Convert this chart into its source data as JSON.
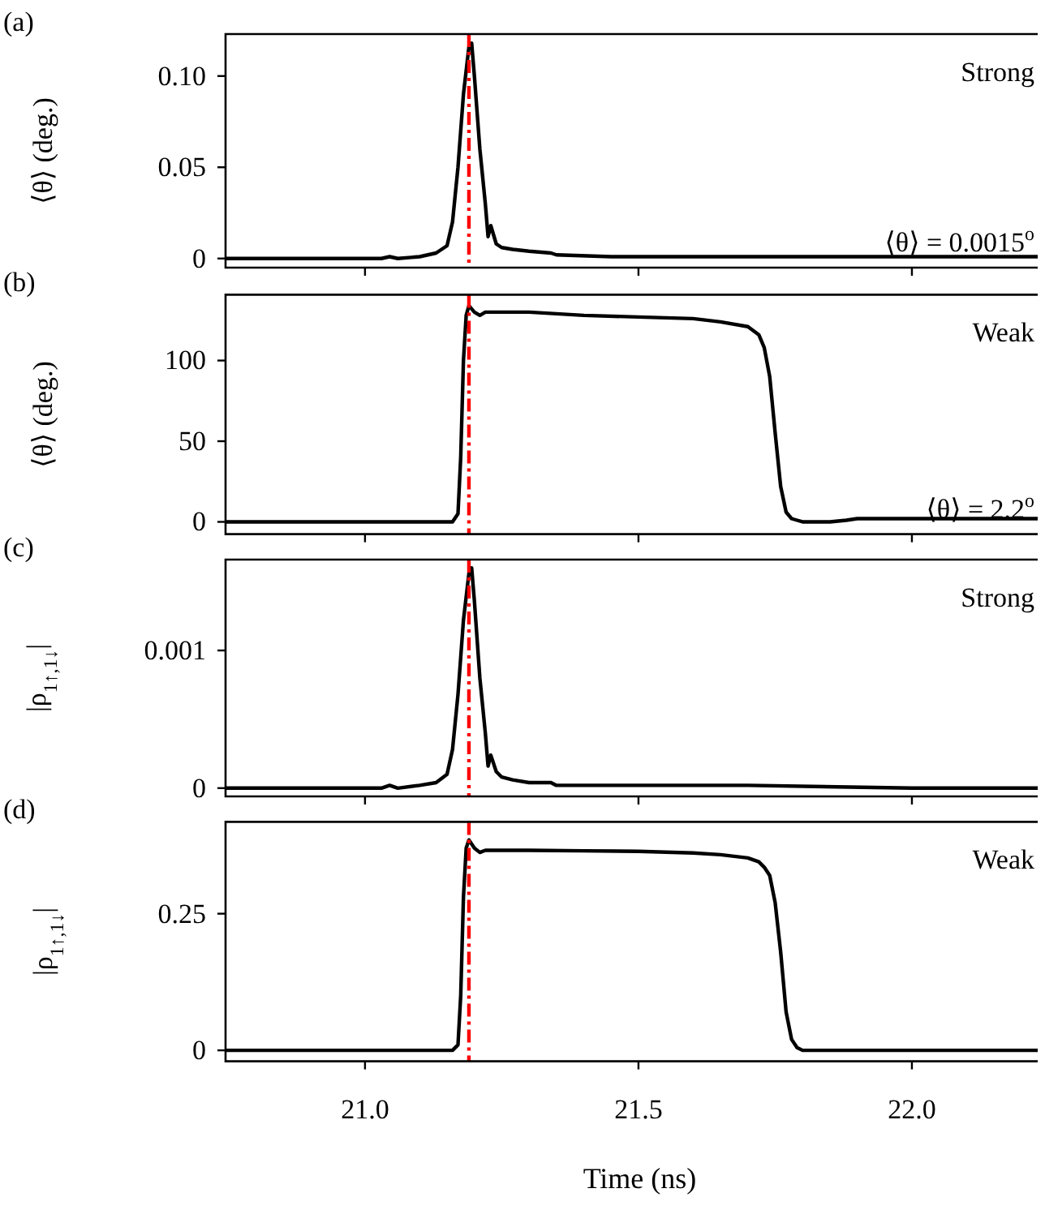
{
  "chart_data": [
    {
      "type": "line",
      "ylabel": "⟨θ⟩ (deg.)",
      "annotations": [
        "(a)",
        "Strong",
        "⟨θ⟩ = 0.0015$^{o}$"
      ],
      "tick_labels": "y",
      "xlim": [
        20.745,
        22.23
      ],
      "xticks": [
        {
          "value": 21,
          "label": null
        },
        {
          "value": 21.5,
          "label": null
        },
        {
          "value": 22,
          "label": null
        }
      ],
      "ylim": [
        -0.005,
        0.123
      ],
      "yticks": [
        0,
        0.05,
        {
          "value": 0.1,
          "label": "0.10"
        }
      ],
      "ref_lines": [
        {
          "axis": "x",
          "value": 21.19,
          "color": "#ff0000",
          "line_style": "dashdot"
        }
      ],
      "series": [
        {
          "color": "#000000",
          "x": [
            20.745,
            20.9,
            21.03,
            21.045,
            21.06,
            21.1,
            21.13,
            21.15,
            21.16,
            21.17,
            21.18,
            21.19,
            21.195,
            21.2,
            21.21,
            21.22,
            21.225,
            21.23,
            21.24,
            21.25,
            21.27,
            21.3,
            21.34,
            21.35,
            21.45,
            21.7,
            22.0,
            22.23
          ],
          "values": [
            0,
            0,
            0,
            0.001,
            0,
            0.001,
            0.003,
            0.007,
            0.02,
            0.05,
            0.09,
            0.116,
            0.118,
            0.1,
            0.06,
            0.03,
            0.012,
            0.018,
            0.008,
            0.006,
            0.005,
            0.004,
            0.003,
            0.002,
            0.001,
            0.001,
            0.001,
            0.001
          ]
        }
      ]
    },
    {
      "type": "line",
      "ylabel": "⟨θ⟩ (deg.)",
      "annotations": [
        "(b)",
        "Weak",
        "⟨θ⟩ = 2.2$^{o}$"
      ],
      "tick_labels": "y",
      "xlim": [
        20.745,
        22.23
      ],
      "xticks": [
        {
          "value": 21,
          "label": null
        },
        {
          "value": 21.5,
          "label": null
        },
        {
          "value": 22,
          "label": null
        }
      ],
      "ylim": [
        -7.6,
        140.8
      ],
      "yticks": [
        0,
        50,
        100
      ],
      "ref_lines": [
        {
          "axis": "x",
          "value": 21.19,
          "color": "#ff0000",
          "line_style": "dashdot"
        }
      ],
      "series": [
        {
          "color": "#000000",
          "x": [
            20.745,
            21.0,
            21.16,
            21.17,
            21.175,
            21.18,
            21.185,
            21.19,
            21.2,
            21.21,
            21.22,
            21.3,
            21.4,
            21.5,
            21.6,
            21.65,
            21.7,
            21.72,
            21.73,
            21.74,
            21.75,
            21.76,
            21.77,
            21.78,
            21.79,
            21.8,
            21.85,
            21.88,
            21.9,
            22.0,
            22.23
          ],
          "values": [
            0,
            0,
            0,
            5,
            40,
            100,
            128,
            134,
            130,
            128,
            130,
            130,
            128,
            127,
            126,
            124,
            121,
            116,
            108,
            90,
            55,
            22,
            6,
            2,
            1,
            0,
            0,
            1,
            2,
            2,
            2
          ]
        }
      ]
    },
    {
      "type": "line",
      "ylabel": "|ρ$_{1↑,1↓}$|",
      "annotations": [
        "(c)",
        "Strong"
      ],
      "tick_labels": "y",
      "xlim": [
        20.745,
        22.23
      ],
      "xticks": [
        {
          "value": 21,
          "label": null
        },
        {
          "value": 21.5,
          "label": null
        },
        {
          "value": 22,
          "label": null
        }
      ],
      "ylim": [
        -6e-05,
        0.00166
      ],
      "yticks": [
        0,
        0.001
      ],
      "ref_lines": [
        {
          "axis": "x",
          "value": 21.19,
          "color": "#ff0000",
          "line_style": "dashdot"
        }
      ],
      "series": [
        {
          "color": "#000000",
          "x": [
            20.745,
            20.9,
            21.03,
            21.045,
            21.06,
            21.1,
            21.13,
            21.15,
            21.16,
            21.17,
            21.18,
            21.19,
            21.195,
            21.2,
            21.21,
            21.22,
            21.225,
            21.23,
            21.24,
            21.25,
            21.27,
            21.3,
            21.34,
            21.35,
            21.45,
            21.7,
            22.0,
            22.23
          ],
          "values": [
            0,
            0,
            0,
            2e-05,
            0,
            2e-05,
            4e-05,
            0.0001,
            0.00028,
            0.00068,
            0.00122,
            0.00156,
            0.0016,
            0.00136,
            0.0008,
            0.0004,
            0.00016,
            0.00024,
            0.00012,
            8e-05,
            6e-05,
            4e-05,
            4e-05,
            2e-05,
            2e-05,
            2e-05,
            0,
            0
          ]
        }
      ]
    },
    {
      "type": "line",
      "ylabel": "|ρ$_{1↑,1↓}$|",
      "xlabel": "Time (ns)",
      "annotations": [
        "(d)",
        "Weak"
      ],
      "xlim": [
        20.745,
        22.23
      ],
      "xticks": [
        {
          "value": 21,
          "label": "21.0"
        },
        {
          "value": 21.5,
          "label": "21.5"
        },
        {
          "value": 22,
          "label": "22.0"
        }
      ],
      "ylim": [
        -0.02,
        0.418
      ],
      "yticks": [
        0,
        0.25
      ],
      "ref_lines": [
        {
          "axis": "x",
          "value": 21.19,
          "color": "#ff0000",
          "line_style": "dashdot"
        }
      ],
      "series": [
        {
          "color": "#000000",
          "x": [
            20.745,
            21.0,
            21.16,
            21.17,
            21.175,
            21.18,
            21.185,
            21.19,
            21.2,
            21.21,
            21.22,
            21.3,
            21.4,
            21.5,
            21.6,
            21.65,
            21.7,
            21.72,
            21.73,
            21.74,
            21.75,
            21.76,
            21.77,
            21.78,
            21.79,
            21.8,
            21.85,
            21.88,
            21.9,
            22.0,
            22.23
          ],
          "values": [
            0,
            0,
            0,
            0.01,
            0.1,
            0.28,
            0.37,
            0.385,
            0.37,
            0.362,
            0.366,
            0.366,
            0.365,
            0.364,
            0.361,
            0.358,
            0.352,
            0.345,
            0.335,
            0.32,
            0.27,
            0.18,
            0.07,
            0.02,
            0.005,
            0,
            0,
            0,
            0,
            0,
            0
          ]
        }
      ]
    }
  ]
}
